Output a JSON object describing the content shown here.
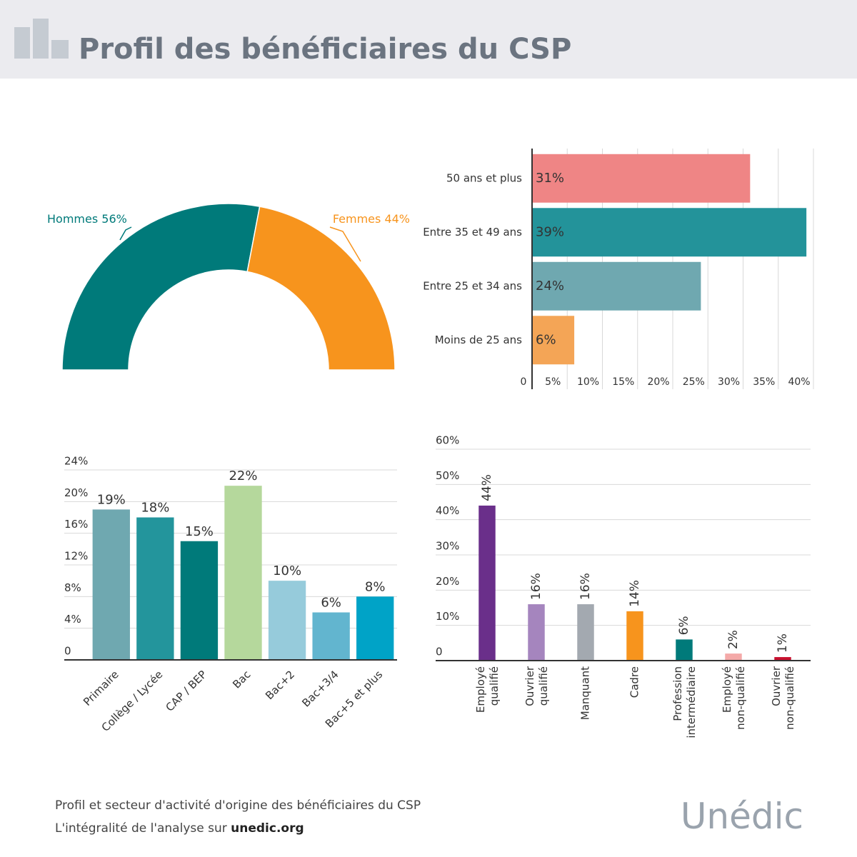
{
  "header": {
    "title": "Profil des bénéficiaires du CSP"
  },
  "chart_data": [
    {
      "type": "donut",
      "categories": [
        "Hommes",
        "Femmes"
      ],
      "values": [
        56,
        44
      ],
      "value_labels": [
        "56%",
        "44%"
      ],
      "colors": [
        "#007a7a",
        "#f7941d"
      ]
    },
    {
      "type": "hbar",
      "categories": [
        "50 ans et plus",
        "Entre 35 et 49 ans",
        "Entre 25 et 34 ans",
        "Moins de 25 ans"
      ],
      "values": [
        31,
        39,
        24,
        6
      ],
      "value_labels": [
        "31%",
        "39%",
        "24%",
        "6%"
      ],
      "colors": [
        "#ef8585",
        "#23939a",
        "#6fa8b0",
        "#f4a556"
      ],
      "xlim": [
        0,
        40
      ],
      "xticks": [
        0,
        {
          "value": 5,
          "label": "5%"
        },
        {
          "value": 10,
          "label": "10%"
        },
        {
          "value": 15,
          "label": "15%"
        },
        {
          "value": 20,
          "label": "20%"
        },
        {
          "value": 25,
          "label": "25%"
        },
        {
          "value": 30,
          "label": "30%"
        },
        {
          "value": 35,
          "label": "35%"
        },
        {
          "value": 40,
          "label": "40%"
        }
      ],
      "grid": true
    },
    {
      "type": "bar",
      "categories": [
        "Primaire",
        "Collège / Lycée",
        "CAP / BEP",
        "Bac",
        "Bac+2",
        "Bac+3/4",
        "Bac+5 et plus"
      ],
      "values": [
        19,
        18,
        15,
        22,
        10,
        6,
        8
      ],
      "value_labels": [
        "19%",
        "18%",
        "15%",
        "22%",
        "10%",
        "6%",
        "8%"
      ],
      "colors": [
        "#6fa8b0",
        "#23959c",
        "#007a7a",
        "#b5d89c",
        "#96cbdb",
        "#62b5cf",
        "#00a3c7"
      ],
      "ylim": [
        0,
        24
      ],
      "yticks": [
        0,
        {
          "value": 4,
          "label": "4%"
        },
        {
          "value": 8,
          "label": "8%"
        },
        {
          "value": 12,
          "label": "12%"
        },
        {
          "value": 16,
          "label": "16%"
        },
        {
          "value": 20,
          "label": "20%"
        },
        {
          "value": 24,
          "label": "24%"
        }
      ],
      "grid": true
    },
    {
      "type": "bar",
      "categories": [
        "Employé qualifié",
        "Ouvrier qualifié",
        "Manquant",
        "Cadre",
        "Profession intermédiaire",
        "Employé non-qualifié",
        "Ouvrier non-qualifié"
      ],
      "values": [
        44,
        16,
        16,
        14,
        6,
        2,
        1
      ],
      "value_labels": [
        "44%",
        "16%",
        "16%",
        "14%",
        "6%",
        "2%",
        "1%"
      ],
      "colors": [
        "#6a2f8a",
        "#a585be",
        "#a3a9b0",
        "#f7941d",
        "#007a7a",
        "#f4a9a8",
        "#c8102e"
      ],
      "ylim": [
        0,
        60
      ],
      "yticks": [
        0,
        {
          "value": 10,
          "label": "10%"
        },
        {
          "value": 20,
          "label": "20%"
        },
        {
          "value": 30,
          "label": "30%"
        },
        {
          "value": 40,
          "label": "40%"
        },
        {
          "value": 50,
          "label": "50%"
        },
        {
          "value": 60,
          "label": "60%"
        }
      ],
      "grid": true
    }
  ],
  "footer": {
    "line1": "Profil et secteur d'activité d'origine des bénéficiaires du CSP",
    "line2": "L'intégralité de l'analyse sur",
    "link": "unedic.org",
    "logo": "Unédic"
  }
}
